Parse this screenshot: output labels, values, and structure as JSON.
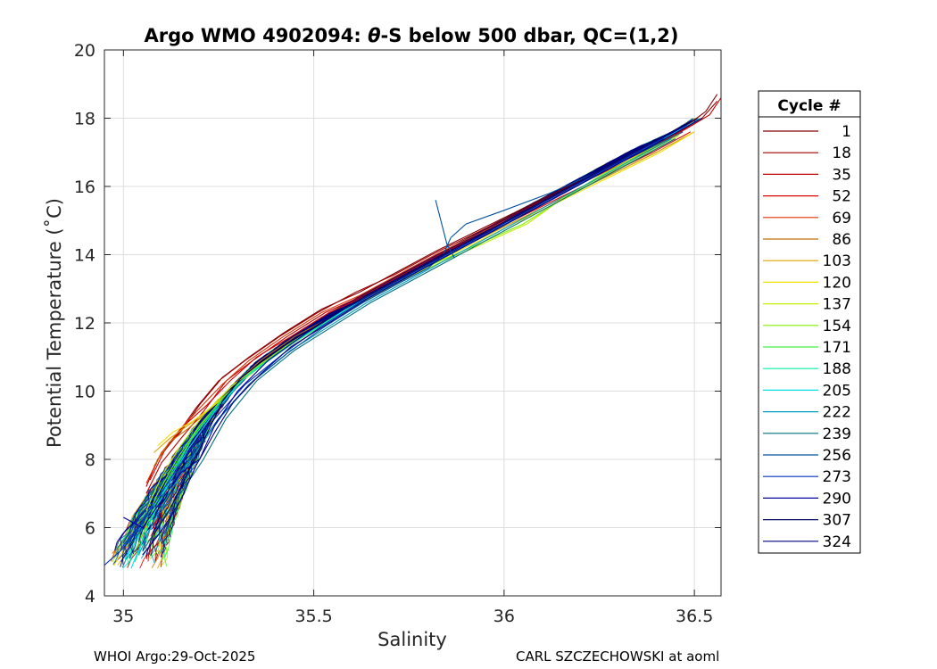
{
  "chart_data": {
    "type": "line",
    "title_parts": {
      "prefix": "Argo WMO 4902094: ",
      "theta": "θ",
      "suffix": "-S below 500 dbar,  QC=(1,2)"
    },
    "xlabel": "Salinity",
    "ylabel": "Potential Temperature (˚C)",
    "xlim": [
      34.95,
      36.57
    ],
    "ylim": [
      4,
      20
    ],
    "xticks": [
      35,
      35.5,
      36,
      36.5
    ],
    "xtick_labels": [
      "35",
      "35.5",
      "36",
      "36.5"
    ],
    "yticks": [
      4,
      6,
      8,
      10,
      12,
      14,
      16,
      18,
      20
    ],
    "ytick_labels": [
      "4",
      "6",
      "8",
      "10",
      "12",
      "14",
      "16",
      "18",
      "20"
    ],
    "grid": true,
    "legend": {
      "title": "Cycle #",
      "position": "right",
      "entries": [
        {
          "label": "1",
          "color": "#800000"
        },
        {
          "label": "18",
          "color": "#a00000"
        },
        {
          "label": "35",
          "color": "#c00000"
        },
        {
          "label": "52",
          "color": "#e00000"
        },
        {
          "label": "69",
          "color": "#e03000"
        },
        {
          "label": "86",
          "color": "#c07000"
        },
        {
          "label": "103",
          "color": "#e0a000"
        },
        {
          "label": "120",
          "color": "#f0e000"
        },
        {
          "label": "137",
          "color": "#c0f000"
        },
        {
          "label": "154",
          "color": "#80f000"
        },
        {
          "label": "171",
          "color": "#40f040"
        },
        {
          "label": "188",
          "color": "#00f0a0"
        },
        {
          "label": "205",
          "color": "#00e0e0"
        },
        {
          "label": "222",
          "color": "#00a0c0"
        },
        {
          "label": "239",
          "color": "#007080"
        },
        {
          "label": "256",
          "color": "#0050a0"
        },
        {
          "label": "273",
          "color": "#0030c0"
        },
        {
          "label": "290",
          "color": "#0000a0"
        },
        {
          "label": "307",
          "color": "#000060"
        },
        {
          "label": "324",
          "color": "#000080"
        }
      ]
    },
    "mean_profile": {
      "salinity": [
        35.03,
        35.05,
        35.08,
        35.12,
        35.17,
        35.22,
        35.28,
        35.35,
        35.45,
        35.55,
        35.65,
        35.75,
        35.85,
        35.95,
        36.05,
        36.15,
        36.25,
        36.35,
        36.45,
        36.52,
        36.56
      ],
      "theta": [
        4.8,
        5.5,
        6.3,
        7.2,
        8.2,
        9.2,
        10.0,
        10.8,
        11.6,
        12.3,
        12.9,
        13.5,
        14.1,
        14.7,
        15.3,
        15.9,
        16.5,
        17.1,
        17.6,
        18.1,
        18.5
      ]
    },
    "series": [
      {
        "name": "1",
        "color": "#800000",
        "salinity": [
          35.07,
          35.1,
          35.15,
          35.2,
          35.26,
          35.33,
          35.42,
          35.52,
          35.62,
          35.72,
          35.82,
          35.93,
          36.04,
          36.15,
          36.26,
          36.37,
          36.47,
          36.53,
          36.56
        ],
        "theta": [
          7.5,
          8.2,
          8.8,
          9.6,
          10.4,
          11.0,
          11.7,
          12.4,
          12.9,
          13.5,
          14.1,
          14.7,
          15.3,
          15.9,
          16.5,
          17.1,
          17.7,
          18.2,
          18.7
        ]
      },
      {
        "name": "18",
        "color": "#a00000",
        "salinity": [
          35.06,
          35.09,
          35.14,
          35.19,
          35.25,
          35.32,
          35.41,
          35.51,
          35.61,
          35.71,
          35.81,
          35.92,
          36.03,
          36.14,
          36.25,
          36.36,
          36.46,
          36.52,
          36.56
        ],
        "theta": [
          7.2,
          8.0,
          8.7,
          9.5,
          10.3,
          10.9,
          11.6,
          12.3,
          12.9,
          13.4,
          14.0,
          14.6,
          15.2,
          15.8,
          16.4,
          17.0,
          17.6,
          18.0,
          18.5
        ]
      },
      {
        "name": "35",
        "color": "#c00000",
        "salinity": [
          35.06,
          35.1,
          35.15,
          35.21,
          35.27,
          35.34,
          35.43,
          35.53,
          35.63,
          35.73,
          35.83,
          35.94,
          36.05,
          36.16,
          36.27,
          36.38,
          36.48,
          36.54,
          36.57
        ],
        "theta": [
          7.0,
          7.9,
          8.6,
          9.4,
          10.3,
          10.9,
          11.6,
          12.3,
          12.8,
          13.4,
          14.0,
          14.6,
          15.2,
          15.9,
          16.5,
          17.1,
          17.7,
          18.1,
          18.6
        ]
      },
      {
        "name": "52",
        "color": "#e00000",
        "salinity": [
          35.07,
          35.11,
          35.16,
          35.22,
          35.28,
          35.35,
          35.44,
          35.54,
          35.64,
          35.74,
          35.84,
          35.95,
          36.06,
          36.17,
          36.28,
          36.39,
          36.49
        ],
        "theta": [
          7.4,
          8.3,
          9.0,
          9.6,
          10.3,
          11.0,
          11.6,
          12.3,
          12.8,
          13.4,
          14.0,
          14.6,
          15.2,
          15.8,
          16.4,
          17.0,
          17.6
        ]
      },
      {
        "name": "69",
        "color": "#e03000",
        "salinity": [
          35.06,
          35.1,
          35.15,
          35.2,
          35.26,
          35.33,
          35.42,
          35.52,
          35.62,
          35.72,
          35.82,
          35.93,
          36.04,
          36.15,
          36.26,
          36.37,
          36.47
        ],
        "theta": [
          7.3,
          8.2,
          8.9,
          9.5,
          10.2,
          10.9,
          11.6,
          12.3,
          12.8,
          13.4,
          14.0,
          14.6,
          15.2,
          15.8,
          16.4,
          17.0,
          17.6
        ]
      },
      {
        "name": "86",
        "color": "#c07000",
        "salinity": [
          35.08,
          35.12,
          35.17,
          35.23,
          35.29,
          35.36,
          35.45,
          35.55,
          35.65,
          35.75,
          35.85,
          35.96,
          36.07,
          36.18,
          36.29,
          36.4,
          36.5
        ],
        "theta": [
          7.8,
          8.5,
          8.9,
          9.5,
          10.2,
          10.9,
          11.6,
          12.2,
          12.8,
          13.4,
          14.0,
          14.6,
          15.2,
          15.8,
          16.4,
          17.0,
          17.6
        ]
      },
      {
        "name": "103",
        "color": "#e0a000",
        "salinity": [
          35.08,
          35.12,
          35.17,
          35.23,
          35.29,
          35.36,
          35.45,
          35.55,
          35.65,
          35.75,
          35.85,
          35.96,
          36.07,
          36.18,
          36.29,
          36.4,
          36.5
        ],
        "theta": [
          8.2,
          8.6,
          9.0,
          9.5,
          10.1,
          10.8,
          11.5,
          12.2,
          12.8,
          13.4,
          14.0,
          14.6,
          15.2,
          15.8,
          16.4,
          17.0,
          17.6
        ]
      },
      {
        "name": "120",
        "color": "#f0e000",
        "salinity": [
          35.09,
          35.13,
          35.18,
          35.24,
          35.3,
          35.37,
          35.46,
          35.56,
          35.66,
          35.76,
          35.86,
          35.97,
          36.08,
          36.19,
          36.3,
          36.41,
          36.5
        ],
        "theta": [
          8.4,
          8.8,
          9.1,
          9.6,
          10.2,
          10.8,
          11.5,
          12.2,
          12.8,
          13.4,
          14.0,
          14.6,
          15.2,
          15.8,
          16.4,
          17.0,
          17.6
        ]
      },
      {
        "name": "137",
        "color": "#c0f000",
        "salinity": [
          35.06,
          35.1,
          35.15,
          35.21,
          35.28,
          35.36,
          35.46,
          35.56,
          35.66,
          35.76,
          35.86,
          35.96,
          36.06,
          36.16,
          36.26,
          36.36,
          36.46
        ],
        "theta": [
          6.5,
          7.5,
          8.4,
          9.3,
          10.1,
          10.8,
          11.5,
          12.2,
          12.8,
          13.4,
          13.9,
          14.4,
          14.9,
          15.7,
          16.3,
          16.9,
          17.5
        ]
      },
      {
        "name": "154",
        "color": "#80f000",
        "salinity": [
          35.05,
          35.09,
          35.14,
          35.2,
          35.27,
          35.35,
          35.45,
          35.55,
          35.65,
          35.75,
          35.85,
          35.95,
          36.05,
          36.15,
          36.25,
          36.35,
          36.45
        ],
        "theta": [
          6.0,
          7.0,
          8.0,
          9.0,
          9.9,
          10.7,
          11.5,
          12.2,
          12.8,
          13.4,
          13.9,
          14.4,
          14.9,
          15.6,
          16.3,
          16.9,
          17.5
        ]
      },
      {
        "name": "171",
        "color": "#40f040",
        "salinity": [
          35.04,
          35.08,
          35.13,
          35.19,
          35.26,
          35.34,
          35.44,
          35.54,
          35.64,
          35.74,
          35.84,
          35.94,
          36.04,
          36.14,
          36.24,
          36.34,
          36.44
        ],
        "theta": [
          5.5,
          6.6,
          7.7,
          8.8,
          9.8,
          10.6,
          11.4,
          12.1,
          12.7,
          13.3,
          13.9,
          14.5,
          15.1,
          15.7,
          16.3,
          16.9,
          17.5
        ]
      },
      {
        "name": "188",
        "color": "#00f0a0",
        "salinity": [
          35.03,
          35.07,
          35.12,
          35.18,
          35.25,
          35.33,
          35.43,
          35.53,
          35.63,
          35.73,
          35.83,
          35.93,
          36.03,
          36.13,
          36.23,
          36.33,
          36.43
        ],
        "theta": [
          5.0,
          6.2,
          7.4,
          8.6,
          9.6,
          10.5,
          11.3,
          12.0,
          12.7,
          13.3,
          13.9,
          14.5,
          15.1,
          15.7,
          16.3,
          16.9,
          17.5
        ]
      },
      {
        "name": "205",
        "color": "#00e0e0",
        "salinity": [
          35.02,
          35.06,
          35.11,
          35.17,
          35.24,
          35.32,
          35.42,
          35.52,
          35.62,
          35.72,
          35.82,
          35.92,
          36.02,
          36.12,
          36.22,
          36.32,
          36.42,
          36.5
        ],
        "theta": [
          4.8,
          5.9,
          7.1,
          8.3,
          9.4,
          10.4,
          11.2,
          12.0,
          12.6,
          13.2,
          13.8,
          14.4,
          15.0,
          15.6,
          16.2,
          16.8,
          17.4,
          17.9
        ]
      },
      {
        "name": "222",
        "color": "#00a0c0",
        "salinity": [
          35.04,
          35.08,
          35.13,
          35.19,
          35.26,
          35.34,
          35.44,
          35.54,
          35.64,
          35.74,
          35.84,
          35.94,
          36.04,
          36.14,
          36.24,
          36.34,
          36.44
        ],
        "theta": [
          5.2,
          6.2,
          7.2,
          8.2,
          9.3,
          10.3,
          11.2,
          11.9,
          12.6,
          13.2,
          13.8,
          14.4,
          15.0,
          15.6,
          16.2,
          16.8,
          17.4
        ]
      },
      {
        "name": "239",
        "color": "#007080",
        "salinity": [
          35.05,
          35.1,
          35.15,
          35.21,
          35.27,
          35.35,
          35.45,
          35.55,
          35.65,
          35.75,
          35.85,
          35.95,
          36.05,
          36.15,
          36.25,
          36.35,
          36.45
        ],
        "theta": [
          5.3,
          6.2,
          7.0,
          8.0,
          9.2,
          10.3,
          11.2,
          11.9,
          12.6,
          13.2,
          13.8,
          14.4,
          15.0,
          15.6,
          16.2,
          16.8,
          17.4
        ]
      },
      {
        "name": "256",
        "color": "#0050a0",
        "salinity": [
          35.01,
          35.06,
          35.12,
          35.18,
          35.25,
          35.33,
          35.43,
          35.53,
          35.63,
          35.73,
          35.8,
          35.84,
          35.86,
          35.9,
          36.0,
          36.12,
          36.24,
          36.36,
          36.47
        ],
        "theta": [
          5.5,
          6.3,
          7.2,
          8.1,
          9.2,
          10.2,
          11.1,
          11.9,
          12.6,
          13.2,
          13.6,
          14.0,
          14.5,
          14.9,
          15.3,
          15.8,
          16.4,
          17.0,
          17.6
        ]
      },
      {
        "name": "273",
        "color": "#0030c0",
        "salinity": [
          34.95,
          35.0,
          35.05,
          35.11,
          35.17,
          35.24,
          35.32,
          35.42,
          35.52,
          35.62,
          35.72,
          35.82,
          35.92,
          36.02,
          36.12,
          36.22,
          36.32,
          36.42
        ],
        "theta": [
          4.9,
          5.4,
          6.2,
          7.2,
          8.2,
          9.2,
          10.2,
          11.1,
          11.9,
          12.6,
          13.2,
          13.8,
          14.4,
          15.0,
          15.6,
          16.2,
          16.8,
          17.4
        ]
      },
      {
        "name": "290",
        "color": "#0000a0",
        "salinity": [
          35.0,
          35.05,
          35.1,
          35.15,
          35.2,
          35.24,
          35.3,
          35.38,
          35.48,
          35.58,
          35.68,
          35.78,
          35.88,
          35.98,
          36.08,
          36.18,
          36.28,
          36.38,
          36.48
        ],
        "theta": [
          6.3,
          6.0,
          6.8,
          7.6,
          8.0,
          9.0,
          10.0,
          10.9,
          11.7,
          12.4,
          13.0,
          13.6,
          14.2,
          14.8,
          15.4,
          16.0,
          16.6,
          17.2,
          17.8
        ]
      },
      {
        "name": "307",
        "color": "#000060",
        "salinity": [
          35.08,
          35.12,
          35.16,
          35.2,
          35.23,
          35.26,
          35.31,
          35.39,
          35.49,
          35.59,
          35.69,
          35.79,
          35.89,
          35.99,
          36.09,
          36.19,
          36.29,
          36.39,
          36.49
        ],
        "theta": [
          5.8,
          6.5,
          7.4,
          8.3,
          9.0,
          9.7,
          10.4,
          11.1,
          11.8,
          12.5,
          13.1,
          13.7,
          14.3,
          14.9,
          15.5,
          16.1,
          16.7,
          17.3,
          17.9
        ]
      },
      {
        "name": "324",
        "color": "#000080",
        "salinity": [
          35.05,
          35.1,
          35.15,
          35.19,
          35.24,
          35.29,
          35.36,
          35.44,
          35.54,
          35.64,
          35.74,
          35.84,
          35.94,
          36.04,
          36.14,
          36.24,
          36.34,
          36.44,
          36.52
        ],
        "theta": [
          5.2,
          5.9,
          6.8,
          7.8,
          8.8,
          9.7,
          10.5,
          11.3,
          12.0,
          12.7,
          13.3,
          13.9,
          14.5,
          15.1,
          15.7,
          16.3,
          16.9,
          17.5,
          18.0
        ]
      },
      {
        "name": "spike",
        "color": "#0050a0",
        "salinity": [
          35.82,
          35.85,
          35.87
        ],
        "theta": [
          15.6,
          14.3,
          13.9
        ]
      }
    ]
  },
  "footer": {
    "left": "WHOI Argo:29-Oct-2025",
    "right": "CARL SZCZECHOWSKI at aoml"
  }
}
